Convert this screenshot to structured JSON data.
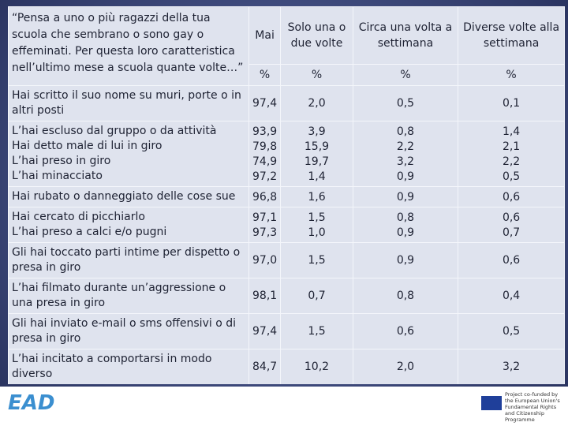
{
  "table": {
    "question": "“Pensa a uno o più ragazzi della tua scuola che sembrano o sono gay o effeminati. Per questa loro caratteristica nell’ultimo mese a scuola quante volte…”",
    "columns": [
      "Mai",
      "Solo una o due volte",
      "Circa una volta a settimana",
      "Diverse volte alla settimana"
    ],
    "units": [
      "%",
      "%",
      "%",
      "%"
    ],
    "rows": [
      {
        "label": "Hai scritto il suo nome su muri, porte o in altri posti",
        "values": [
          "97,4",
          "2,0",
          "0,5",
          "0,1"
        ]
      },
      {
        "label": "L’hai escluso dal gruppo o da attività",
        "values": [
          "93,9",
          "3,9",
          "0,8",
          "1,4"
        ]
      },
      {
        "label": "Hai detto male di lui in giro",
        "values": [
          "79,8",
          "15,9",
          "2,2",
          "2,1"
        ]
      },
      {
        "label": "L’hai preso in giro",
        "values": [
          "74,9",
          "19,7",
          "3,2",
          "2,2"
        ]
      },
      {
        "label": "L’hai minacciato",
        "values": [
          "97,2",
          "1,4",
          "0,9",
          "0,5"
        ]
      },
      {
        "label": "Hai rubato o danneggiato delle cose sue",
        "values": [
          "96,8",
          "1,6",
          "0,9",
          "0,6"
        ]
      },
      {
        "label": "Hai cercato di picchiarlo",
        "values": [
          "97,1",
          "1,5",
          "0,8",
          "0,6"
        ]
      },
      {
        "label": "L’hai preso a calci e/o pugni",
        "values": [
          "97,3",
          "1,0",
          "0,9",
          "0,7"
        ]
      },
      {
        "label": "Gli hai toccato parti intime per dispetto o presa in giro",
        "values": [
          "97,0",
          "1,5",
          "0,9",
          "0,6"
        ]
      },
      {
        "label": "L’hai filmato durante un’aggressione o una presa in giro",
        "values": [
          "98,1",
          "0,7",
          "0,8",
          "0,4"
        ]
      },
      {
        "label": "Gli hai inviato e-mail o sms offensivi o di presa in giro",
        "values": [
          "97,4",
          "1,5",
          "0,6",
          "0,5"
        ]
      },
      {
        "label": "L’hai incitato a comportarsi in modo diverso",
        "values": [
          "84,7",
          "10,2",
          "2,0",
          "3,2"
        ]
      }
    ]
  },
  "footer": {
    "logo": "EAD",
    "funding": "Project co-funded by the European Union's Fundamental Rights and Citizenship Programme"
  }
}
